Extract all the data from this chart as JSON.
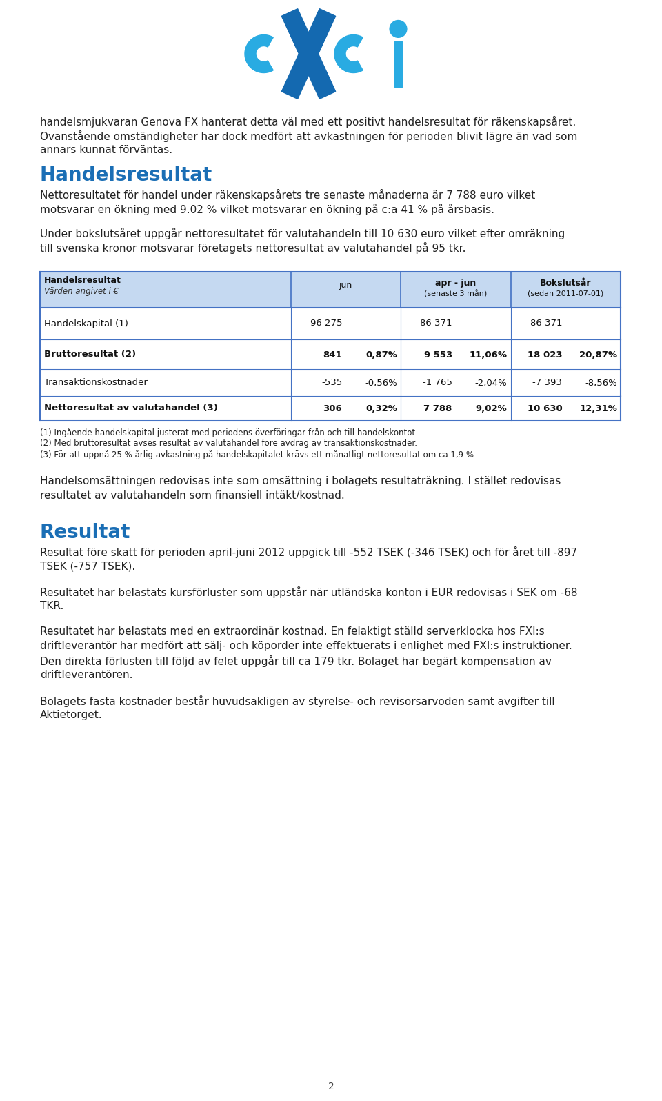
{
  "background_color": "#ffffff",
  "page_number": "2",
  "intro_text_lines": [
    "handelsmjukvaran Genova FX hanterat detta väl med ett positivt handelsresultat för räkenskapsåret.",
    "Ovanstående omständigheter har dock medfört att avkastningen för perioden blivit lägre än vad som",
    "annars kunnat förväntas."
  ],
  "section1_title": "Handelsresultat",
  "section1_title_color": "#1a6eb5",
  "section1_para1_lines": [
    "Nettoresultatet för handel under räkenskapsårets tre senaste månaderna är 7 788 euro vilket",
    "motsvarar en ökning med 9.02 % vilket motsvarar en ökning på c:a 41 % på årsbasis."
  ],
  "section1_para2_lines": [
    "Under bokslutsåret uppgår nettoresultatet för valutahandeln till 10 630 euro vilket efter omräkning",
    "till svenska kronor motsvarar företagets nettoresultat av valutahandel på 95 tkr."
  ],
  "table_header_bg": "#C5D9F1",
  "table_border_color": "#4472C4",
  "table_rows": [
    {
      "label": "Handelskapital (1)",
      "bold": false,
      "vals": [
        "96 275",
        "",
        "86 371",
        "",
        "86 371",
        ""
      ]
    },
    {
      "label": "Bruttoresultat (2)",
      "bold": true,
      "vals": [
        "841",
        "0,87%",
        "9 553",
        "11,06%",
        "18 023",
        "20,87%"
      ]
    },
    {
      "label": "Transaktionskostnader",
      "bold": false,
      "vals": [
        "-535",
        "-0,56%",
        "-1 765",
        "-2,04%",
        "-7 393",
        "-8,56%"
      ]
    },
    {
      "label": "Nettoresultat av valutahandel (3)",
      "bold": true,
      "vals": [
        "306",
        "0,32%",
        "7 788",
        "9,02%",
        "10 630",
        "12,31%"
      ]
    }
  ],
  "footnotes": [
    "(1) Ingående handelskapital justerat med periodens överföringar från och till handelskontot.",
    "(2) Med bruttoresultat avses resultat av valutahandel före avdrag av transaktionskostnader.",
    "(3) För att uppnå 25 % årlig avkastning på handelskapitalet krävs ett månatligt nettoresultat om ca 1,9 %."
  ],
  "section1_para3_lines": [
    "Handelsomsättningen redovisas inte som omsättning i bolagets resultaträkning. I stället redovisas",
    "resultatet av valutahandeln som finansiell intäkt/kostnad."
  ],
  "section2_title": "Resultat",
  "section2_title_color": "#1a6eb5",
  "section2_para1_lines": [
    "Resultat före skatt för perioden april-juni 2012 uppgick till -552 TSEK (-346 TSEK) och för året till -897",
    "TSEK (-757 TSEK)."
  ],
  "section2_para2_lines": [
    "Resultatet har belastats kursförluster som uppstår när utländska konton i EUR redovisas i SEK om -68",
    "TKR."
  ],
  "section2_para3_lines": [
    "Resultatet har belastats med en extraordinär kostnad. En felaktigt ställd serverklocka hos FXI:s",
    "driftleverantör har medfört att sälj- och köporder inte effektuerats i enlighet med FXI:s instruktioner.",
    "Den direkta förlusten till följd av felet uppgår till ca 179 tkr. Bolaget har begärt kompensation av",
    "driftleverantören."
  ],
  "section2_para4_lines": [
    "Bolagets fasta kostnader består huvudsakligen av styrelse- och revisorsarvoden samt avgifter till",
    "Aktietorget."
  ],
  "logo_light_blue": "#29abe2",
  "logo_dark_blue": "#1469b0"
}
